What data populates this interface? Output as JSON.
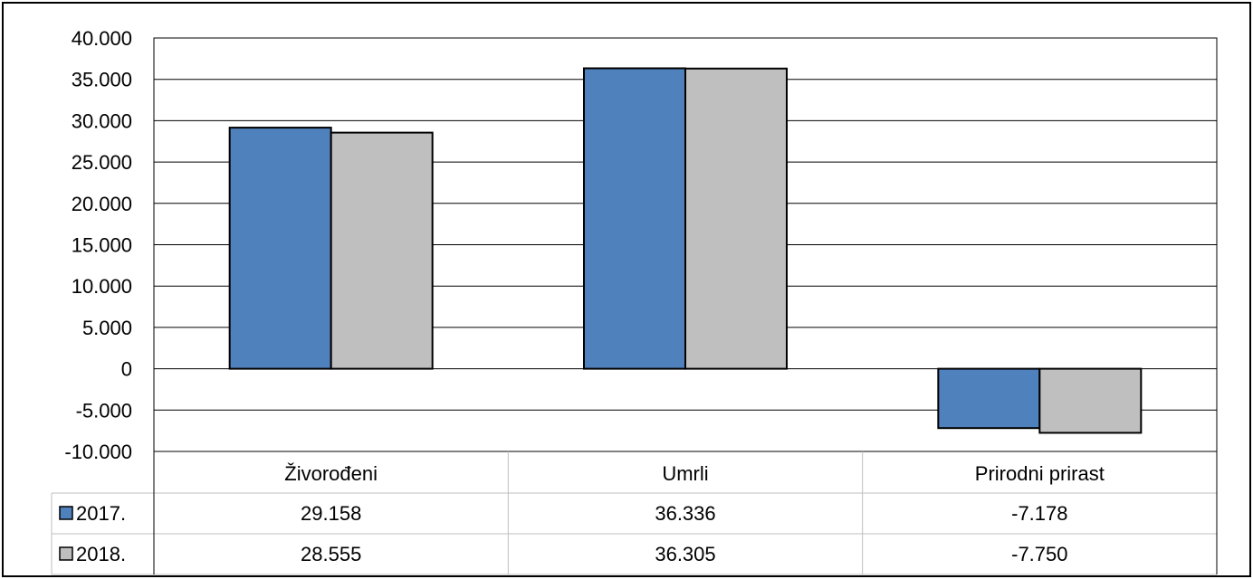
{
  "chart_data": {
    "type": "bar",
    "title": "",
    "xlabel": "",
    "ylabel": "",
    "categories": [
      "Živorođeni",
      "Umrli",
      "Prirodni prirast"
    ],
    "series": [
      {
        "name": "2017.",
        "values": [
          29158,
          36336,
          -7178
        ],
        "value_labels": [
          "29.158",
          "36.336",
          "-7.178"
        ]
      },
      {
        "name": "2018.",
        "values": [
          28555,
          36305,
          -7750
        ],
        "value_labels": [
          "28.555",
          "36.305",
          "-7.750"
        ]
      }
    ],
    "ylim": [
      -10000,
      40000
    ],
    "y_ticks": [
      40000,
      35000,
      30000,
      25000,
      20000,
      15000,
      10000,
      5000,
      0,
      -5000,
      -10000
    ],
    "y_tick_labels": [
      "40.000",
      "35.000",
      "30.000",
      "25.000",
      "20.000",
      "15.000",
      "10.000",
      "5.000",
      "0",
      "-5.000",
      "-10.000"
    ],
    "grid": true,
    "legend": "data-table",
    "colors": {
      "2017.": "#4f81bd",
      "2018.": "#bfbfbf"
    }
  }
}
